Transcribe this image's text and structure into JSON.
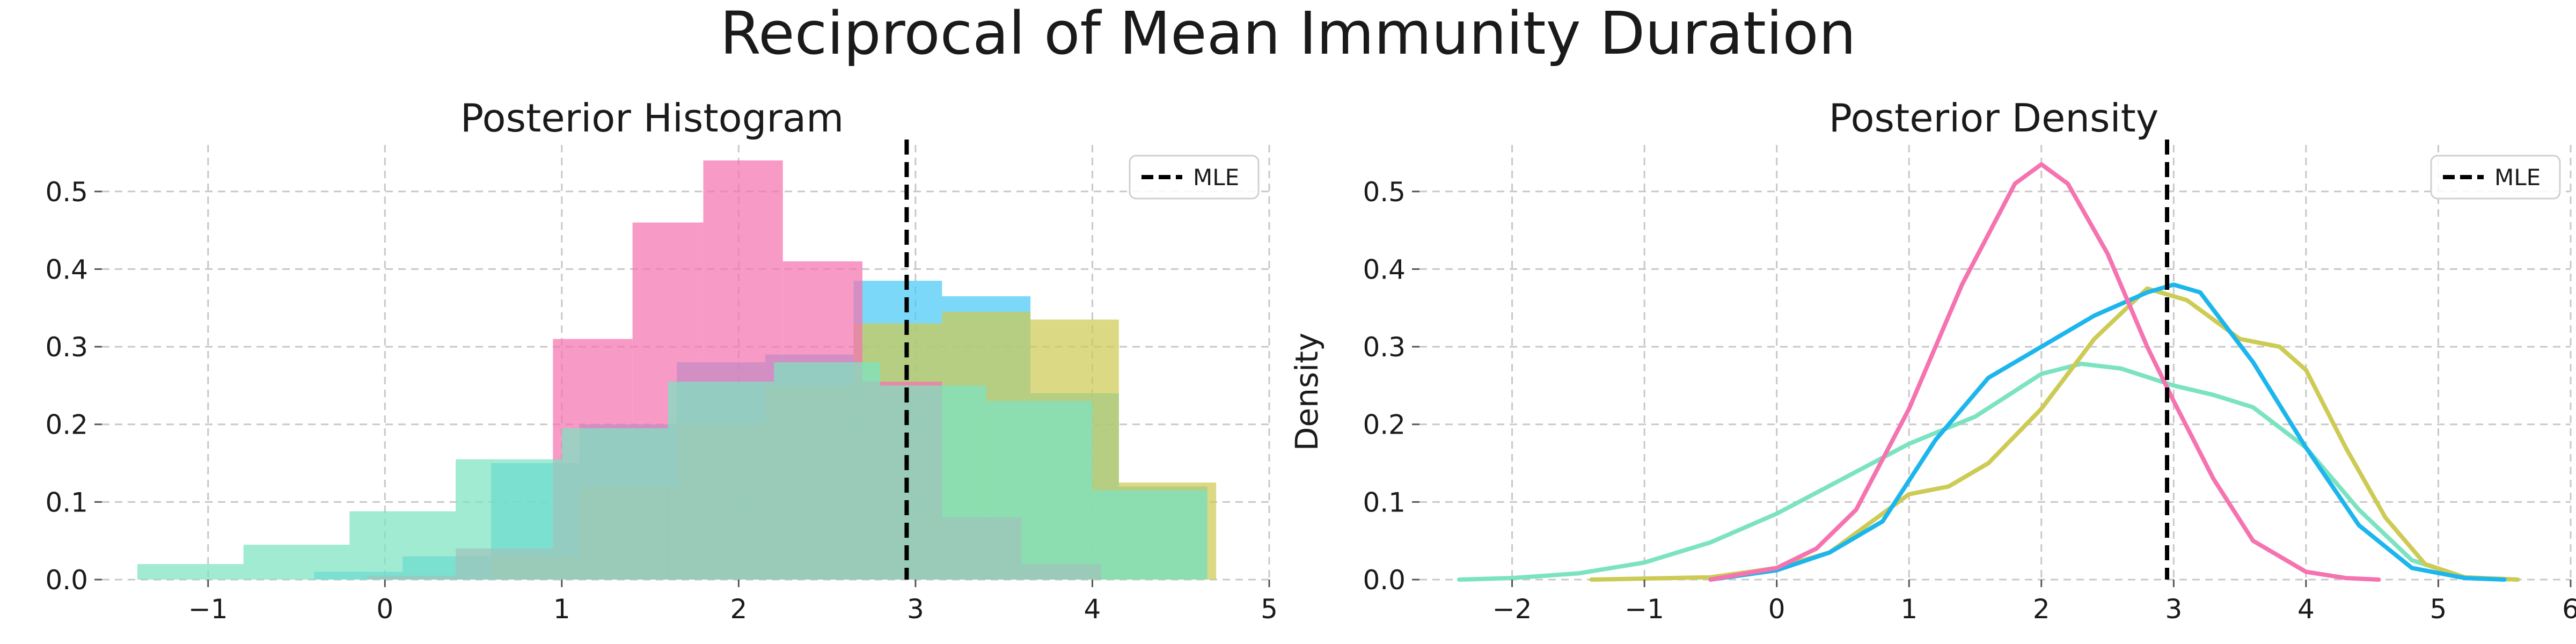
{
  "figure": {
    "title": "Reciprocal of Mean Immunity Duration"
  },
  "chart_data": [
    {
      "type": "histogram",
      "title": "Posterior Histogram",
      "xlabel": "",
      "ylabel": "",
      "xlim": [
        -1.6,
        5.0
      ],
      "ylim": [
        0,
        0.56
      ],
      "xticks": [
        -1,
        0,
        1,
        2,
        3,
        4,
        5
      ],
      "yticks": [
        0.0,
        0.1,
        0.2,
        0.3,
        0.4,
        0.5
      ],
      "grid": true,
      "legend": {
        "position": "top-right",
        "entries": [
          {
            "label": "MLE",
            "style": "dashed",
            "color": "#000000"
          }
        ]
      },
      "reference_lines": [
        {
          "label": "MLE",
          "x": 2.95
        }
      ],
      "series": [
        {
          "color": "#48C9F5",
          "bins": [
            {
              "x0": -0.4,
              "x1": 0.1,
              "y": 0.01
            },
            {
              "x0": 0.1,
              "x1": 0.6,
              "y": 0.03
            },
            {
              "x0": 0.6,
              "x1": 1.1,
              "y": 0.15
            },
            {
              "x0": 1.1,
              "x1": 1.65,
              "y": 0.2
            },
            {
              "x0": 1.65,
              "x1": 2.15,
              "y": 0.28
            },
            {
              "x0": 2.15,
              "x1": 2.65,
              "y": 0.29
            },
            {
              "x0": 2.65,
              "x1": 3.15,
              "y": 0.385
            },
            {
              "x0": 3.15,
              "x1": 3.65,
              "y": 0.365
            },
            {
              "x0": 3.65,
              "x1": 4.15,
              "y": 0.24
            },
            {
              "x0": 4.15,
              "x1": 4.65,
              "y": 0.12
            }
          ]
        },
        {
          "color": "#CDCB55",
          "bins": [
            {
              "x0": 0.6,
              "x1": 1.1,
              "y": 0.03
            },
            {
              "x0": 1.1,
              "x1": 1.65,
              "y": 0.12
            },
            {
              "x0": 1.65,
              "x1": 2.15,
              "y": 0.2
            },
            {
              "x0": 2.15,
              "x1": 2.65,
              "y": 0.25
            },
            {
              "x0": 2.65,
              "x1": 3.15,
              "y": 0.33
            },
            {
              "x0": 3.15,
              "x1": 3.65,
              "y": 0.345
            },
            {
              "x0": 3.65,
              "x1": 4.15,
              "y": 0.335
            },
            {
              "x0": 4.15,
              "x1": 4.7,
              "y": 0.125
            }
          ]
        },
        {
          "color": "#F573B0",
          "bins": [
            {
              "x0": -0.1,
              "x1": 0.4,
              "y": 0.005
            },
            {
              "x0": 0.4,
              "x1": 0.95,
              "y": 0.04
            },
            {
              "x0": 0.95,
              "x1": 1.4,
              "y": 0.31
            },
            {
              "x0": 1.4,
              "x1": 1.8,
              "y": 0.46
            },
            {
              "x0": 1.8,
              "x1": 2.25,
              "y": 0.54
            },
            {
              "x0": 2.25,
              "x1": 2.7,
              "y": 0.41
            },
            {
              "x0": 2.7,
              "x1": 3.15,
              "y": 0.255
            },
            {
              "x0": 3.15,
              "x1": 3.6,
              "y": 0.08
            },
            {
              "x0": 3.6,
              "x1": 4.05,
              "y": 0.02
            }
          ]
        },
        {
          "color": "#7BE3C0",
          "bins": [
            {
              "x0": -1.4,
              "x1": -0.8,
              "y": 0.02
            },
            {
              "x0": -0.8,
              "x1": -0.2,
              "y": 0.045
            },
            {
              "x0": -0.2,
              "x1": 0.4,
              "y": 0.088
            },
            {
              "x0": 0.4,
              "x1": 1.0,
              "y": 0.155
            },
            {
              "x0": 1.0,
              "x1": 1.6,
              "y": 0.195
            },
            {
              "x0": 1.6,
              "x1": 2.2,
              "y": 0.255
            },
            {
              "x0": 2.2,
              "x1": 2.8,
              "y": 0.28
            },
            {
              "x0": 2.8,
              "x1": 3.4,
              "y": 0.25
            },
            {
              "x0": 3.4,
              "x1": 4.0,
              "y": 0.23
            },
            {
              "x0": 4.0,
              "x1": 4.65,
              "y": 0.115
            }
          ]
        }
      ]
    },
    {
      "type": "line",
      "title": "Posterior Density",
      "xlabel": "",
      "ylabel": "Density",
      "xlim": [
        -2.7,
        6.0
      ],
      "ylim": [
        0,
        0.56
      ],
      "xticks": [
        -2,
        -1,
        0,
        1,
        2,
        3,
        4,
        5,
        6
      ],
      "yticks": [
        0.0,
        0.1,
        0.2,
        0.3,
        0.4,
        0.5
      ],
      "grid": true,
      "legend": {
        "position": "top-right",
        "entries": [
          {
            "label": "MLE",
            "style": "dashed",
            "color": "#000000"
          }
        ]
      },
      "reference_lines": [
        {
          "label": "MLE",
          "x": 2.95
        }
      ],
      "series": [
        {
          "color": "#7BE3C0",
          "x": [
            -2.4,
            -2.0,
            -1.5,
            -1.0,
            -0.5,
            0.0,
            0.5,
            1.0,
            1.5,
            2.0,
            2.3,
            2.6,
            3.0,
            3.3,
            3.6,
            4.0,
            4.4,
            4.8,
            5.2,
            5.6
          ],
          "y": [
            0.0,
            0.002,
            0.008,
            0.022,
            0.048,
            0.085,
            0.13,
            0.175,
            0.21,
            0.265,
            0.278,
            0.272,
            0.25,
            0.238,
            0.222,
            0.17,
            0.09,
            0.025,
            0.003,
            0.0
          ]
        },
        {
          "color": "#CDCB55",
          "x": [
            -1.4,
            -0.5,
            0.0,
            0.4,
            0.8,
            1.0,
            1.3,
            1.6,
            2.0,
            2.4,
            2.8,
            3.1,
            3.5,
            3.8,
            4.0,
            4.3,
            4.6,
            4.9,
            5.2,
            5.6
          ],
          "y": [
            0.0,
            0.003,
            0.015,
            0.035,
            0.085,
            0.11,
            0.12,
            0.15,
            0.22,
            0.31,
            0.375,
            0.36,
            0.31,
            0.3,
            0.27,
            0.17,
            0.08,
            0.02,
            0.003,
            0.0
          ]
        },
        {
          "color": "#1DB6EC",
          "x": [
            -0.5,
            0.0,
            0.4,
            0.8,
            1.2,
            1.6,
            2.0,
            2.4,
            2.8,
            3.0,
            3.2,
            3.6,
            4.0,
            4.4,
            4.8,
            5.2,
            5.5
          ],
          "y": [
            0.0,
            0.012,
            0.035,
            0.075,
            0.18,
            0.26,
            0.3,
            0.34,
            0.37,
            0.38,
            0.37,
            0.28,
            0.17,
            0.07,
            0.015,
            0.002,
            0.0
          ]
        },
        {
          "color": "#F573B0",
          "x": [
            -0.5,
            0.0,
            0.3,
            0.6,
            1.0,
            1.4,
            1.8,
            2.0,
            2.2,
            2.5,
            2.8,
            3.0,
            3.3,
            3.6,
            4.0,
            4.3,
            4.55
          ],
          "y": [
            0.0,
            0.015,
            0.04,
            0.09,
            0.22,
            0.38,
            0.51,
            0.535,
            0.51,
            0.42,
            0.3,
            0.23,
            0.13,
            0.05,
            0.01,
            0.002,
            0.0
          ]
        }
      ]
    }
  ]
}
